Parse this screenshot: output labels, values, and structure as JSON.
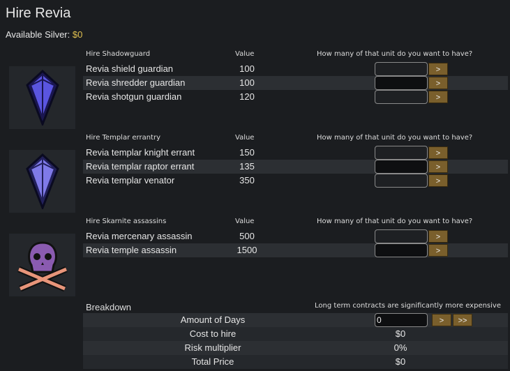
{
  "title": "Hire Revia",
  "silver": {
    "label": "Available Silver:",
    "value": "$0"
  },
  "sections": [
    {
      "header": "Hire Shadowguard",
      "value_header": "Value",
      "question": "How many of that unit do you want to have?",
      "icon": "blue-crystal-icon",
      "units": [
        {
          "name": "Revia shield guardian",
          "value": "100",
          "qty": ""
        },
        {
          "name": "Revia shredder guardian",
          "value": "100",
          "qty": ""
        },
        {
          "name": "Revia shotgun guardian",
          "value": "120",
          "qty": ""
        }
      ]
    },
    {
      "header": "Hire Templar errantry",
      "value_header": "Value",
      "question": "How many of that unit do you want to have?",
      "icon": "light-blue-crystal-icon",
      "units": [
        {
          "name": "Revia templar knight errant",
          "value": "150",
          "qty": ""
        },
        {
          "name": "Revia templar raptor errant",
          "value": "135",
          "qty": ""
        },
        {
          "name": "Revia templar venator",
          "value": "350",
          "qty": ""
        }
      ]
    },
    {
      "header": "Hire Skarnite assassins",
      "value_header": "Value",
      "question": "How many of that unit do you want to have?",
      "icon": "skull-crossed-swords-icon",
      "units": [
        {
          "name": "Revia mercenary assassin",
          "value": "500",
          "qty": ""
        },
        {
          "name": "Revia temple assassin",
          "value": "1500",
          "qty": ""
        }
      ]
    }
  ],
  "button_next": ">",
  "button_fast": ">>",
  "breakdown": {
    "header": "Breakdown",
    "note": "Long term contracts are significantly more expensive",
    "days_label": "Amount of Days",
    "days_value": "0",
    "rows": [
      {
        "label": "Cost to hire",
        "value": "$0"
      },
      {
        "label": "Risk multiplier",
        "value": "0%"
      },
      {
        "label": "Total Price",
        "value": "$0"
      }
    ]
  }
}
